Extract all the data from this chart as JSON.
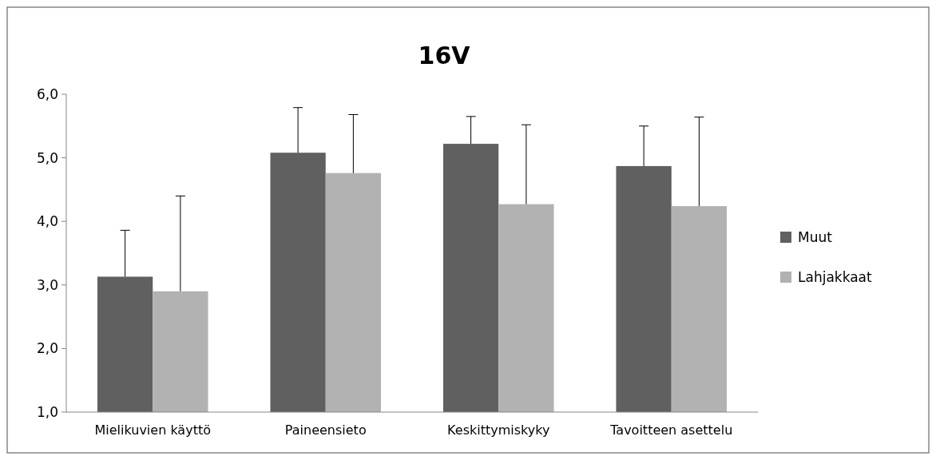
{
  "chart_data": {
    "type": "bar",
    "title": "16V",
    "categories": [
      "Mielikuvien käyttö",
      "Paineensieto",
      "Keskittymiskyky",
      "Tavoitteen asettelu"
    ],
    "series": [
      {
        "name": "Muut",
        "color": "#606060",
        "values": [
          3.13,
          5.08,
          5.22,
          4.87
        ],
        "errors": [
          [
            3.13,
            3.86
          ],
          [
            5.08,
            5.79
          ],
          [
            5.22,
            5.65
          ],
          [
            4.87,
            5.5
          ]
        ]
      },
      {
        "name": "Lahjakkaat",
        "color": "#b2b2b2",
        "values": [
          2.9,
          4.76,
          4.27,
          4.24
        ],
        "errors": [
          [
            2.9,
            4.4
          ],
          [
            4.76,
            5.68
          ],
          [
            4.27,
            5.52
          ],
          [
            4.24,
            5.64
          ]
        ]
      }
    ],
    "ylim": [
      1,
      6
    ],
    "yticks": [
      {
        "value": 1,
        "label": "1,0"
      },
      {
        "value": 2,
        "label": "2,0"
      },
      {
        "value": 3,
        "label": "3,0"
      },
      {
        "value": 4,
        "label": "4,0"
      },
      {
        "value": 5,
        "label": "5,0"
      },
      {
        "value": 6,
        "label": "6,0"
      }
    ],
    "grid": false,
    "legend": "right"
  }
}
